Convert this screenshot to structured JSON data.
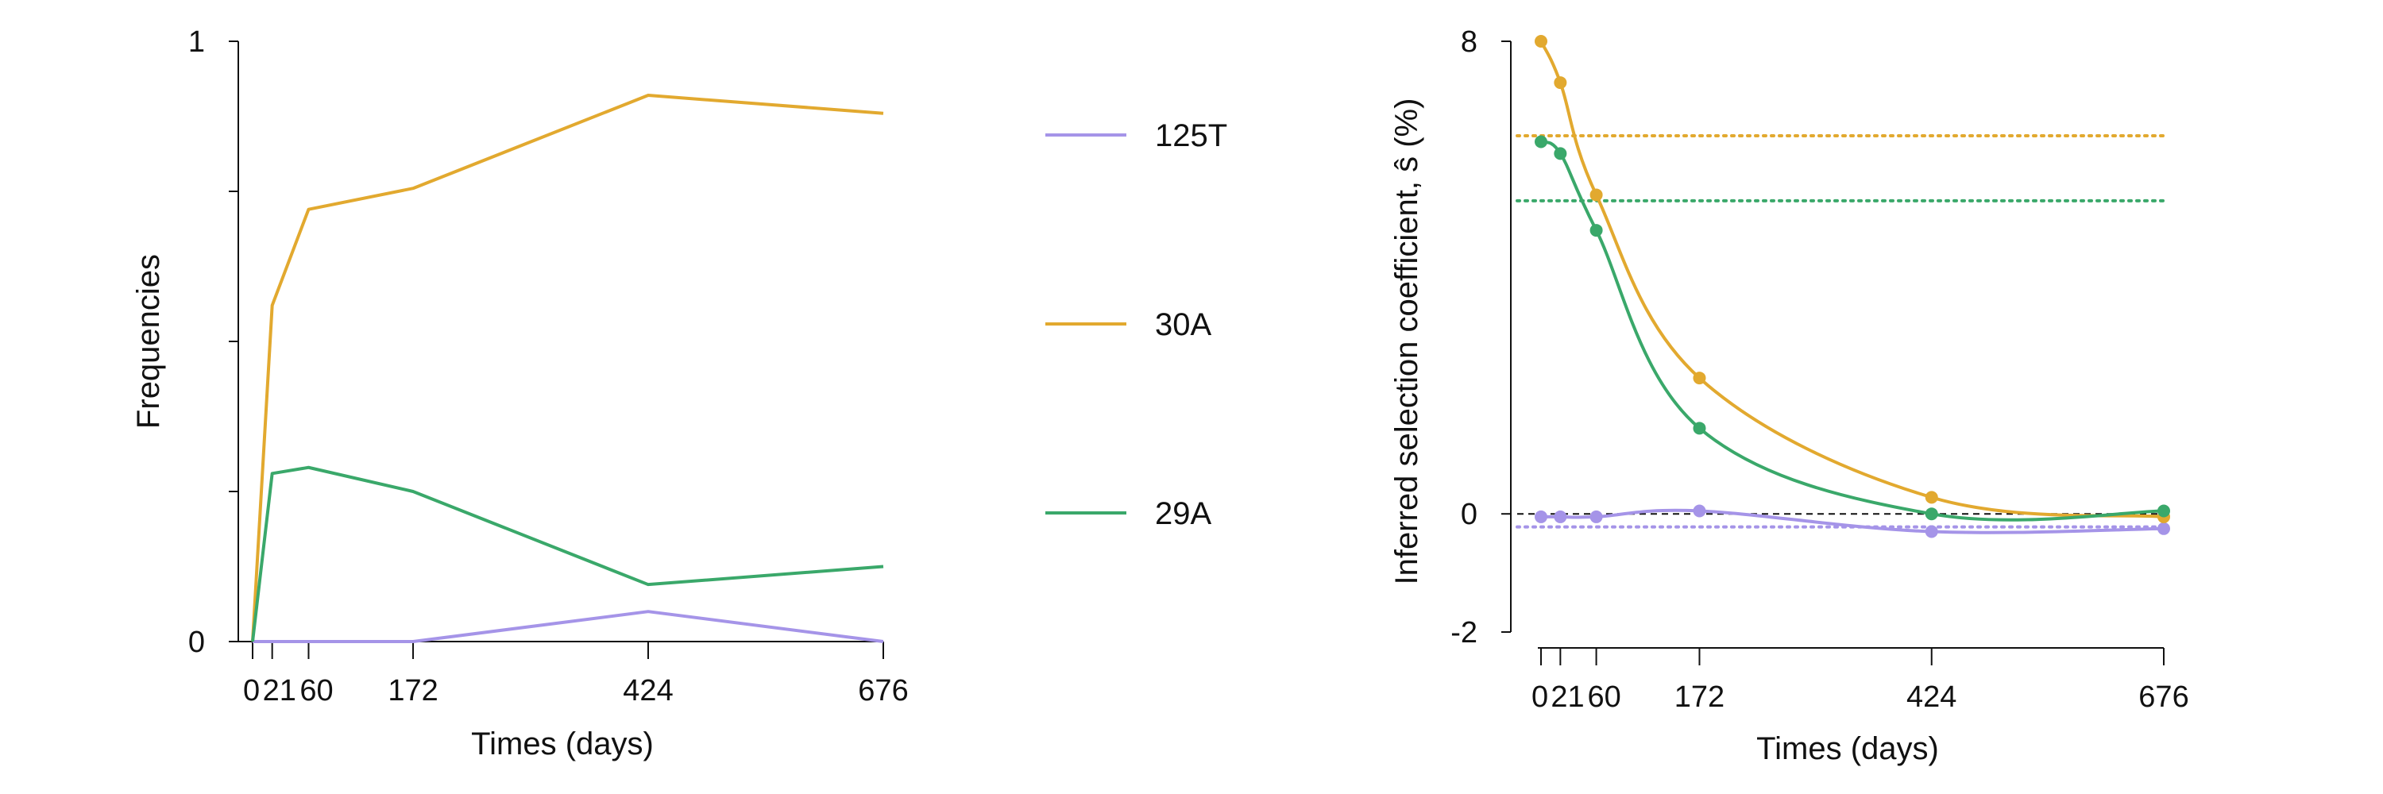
{
  "colors": {
    "125T": "#a594e8",
    "30A": "#e2a92f",
    "29A": "#3aa86a",
    "axis": "#111111",
    "zero_line": "#111111"
  },
  "legend": {
    "items": [
      {
        "name": "125T",
        "color": "#a594e8"
      },
      {
        "name": "30A",
        "color": "#e2a92f"
      },
      {
        "name": "29A",
        "color": "#3aa86a"
      }
    ]
  },
  "chart_data": [
    {
      "type": "line",
      "title": "",
      "xlabel": "Times (days)",
      "ylabel": "Frequencies",
      "x": [
        0,
        21,
        60,
        172,
        424,
        676
      ],
      "xticks": [
        0,
        21,
        60,
        172,
        424,
        676
      ],
      "xticklabels": [
        "0",
        "21",
        "60",
        "172",
        "424",
        "676"
      ],
      "yticks": [
        0,
        0.25,
        0.5,
        0.75,
        1
      ],
      "yticklabels": [
        "0",
        "",
        "",
        "",
        "1"
      ],
      "xlim": [
        0,
        676
      ],
      "ylim": [
        0,
        1
      ],
      "grid": false,
      "series": [
        {
          "name": "125T",
          "values": [
            0.0,
            0.0,
            0.0,
            0.0,
            0.05,
            0.0
          ]
        },
        {
          "name": "30A",
          "values": [
            0.0,
            0.56,
            0.72,
            0.755,
            0.91,
            0.88
          ]
        },
        {
          "name": "29A",
          "values": [
            0.0,
            0.28,
            0.29,
            0.25,
            0.095,
            0.125
          ]
        }
      ]
    },
    {
      "type": "line",
      "title": "",
      "xlabel": "Times (days)",
      "ylabel": "Inferred selection coefficient, ŝ (%)",
      "x": [
        0,
        21,
        60,
        172,
        424,
        676
      ],
      "xticks": [
        0,
        21,
        60,
        172,
        424,
        676
      ],
      "xticklabels": [
        "0",
        "21",
        "60",
        "172",
        "424",
        "676"
      ],
      "yticks": [
        -2,
        0,
        8
      ],
      "yticklabels": [
        "-2",
        "0",
        "8"
      ],
      "xlim": [
        0,
        676
      ],
      "ylim": [
        -2,
        8
      ],
      "grid": false,
      "zero_line": 0,
      "series": [
        {
          "name": "125T",
          "values": [
            -0.05,
            -0.05,
            -0.05,
            0.05,
            -0.3,
            -0.25
          ],
          "final_value": -0.22
        },
        {
          "name": "30A",
          "values": [
            8.0,
            7.3,
            5.4,
            2.3,
            0.28,
            -0.05
          ],
          "final_value": 6.4
        },
        {
          "name": "29A",
          "values": [
            6.3,
            6.1,
            4.8,
            1.45,
            0.0,
            0.05
          ],
          "final_value": 5.3
        }
      ]
    }
  ]
}
